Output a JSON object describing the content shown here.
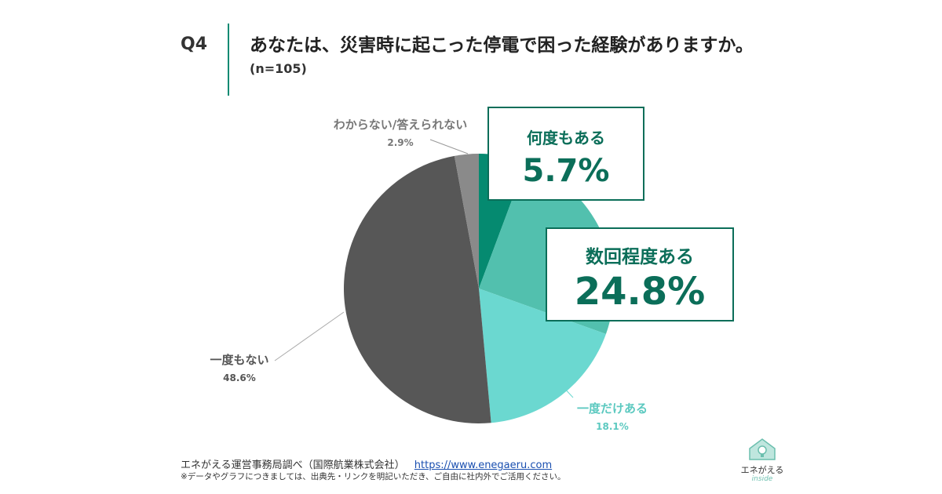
{
  "header": {
    "q_label": "Q4",
    "title": "あなたは、災害時に起こった停電で困った経験がありますか。",
    "sample": "(n=105)"
  },
  "chart_data": {
    "type": "pie",
    "title": "あなたは、災害時に起こった停電で困った経験がありますか。",
    "slices": [
      {
        "label": "何度もある",
        "value": 5.7,
        "display": "5.7%",
        "color": "#058a70"
      },
      {
        "label": "数回程度ある",
        "value": 24.8,
        "display": "24.8%",
        "color": "#52c0ae"
      },
      {
        "label": "一度だけある",
        "value": 18.1,
        "display": "18.1%",
        "color": "#6bd8d0"
      },
      {
        "label": "一度もない",
        "value": 48.6,
        "display": "48.6%",
        "color": "#575757"
      },
      {
        "label": "わからない/答えられない",
        "value": 2.9,
        "display": "2.9%",
        "color": "#8a8a8a"
      }
    ],
    "start_angle": "12 o'clock",
    "direction": "clockwise"
  },
  "footer": {
    "source": "エネがえる運営事務局調べ（国際航業株式会社）",
    "url": "https://www.enegaeru.com",
    "note": "※データやグラフにつきましては、出典先・リンクを明記いただき、ご自由に社内外でご活用ください。"
  },
  "logo": {
    "name": "エネがえる",
    "sub": "inside"
  },
  "colors": {
    "accent": "#0b6e59",
    "divider": "#0b8a72"
  }
}
